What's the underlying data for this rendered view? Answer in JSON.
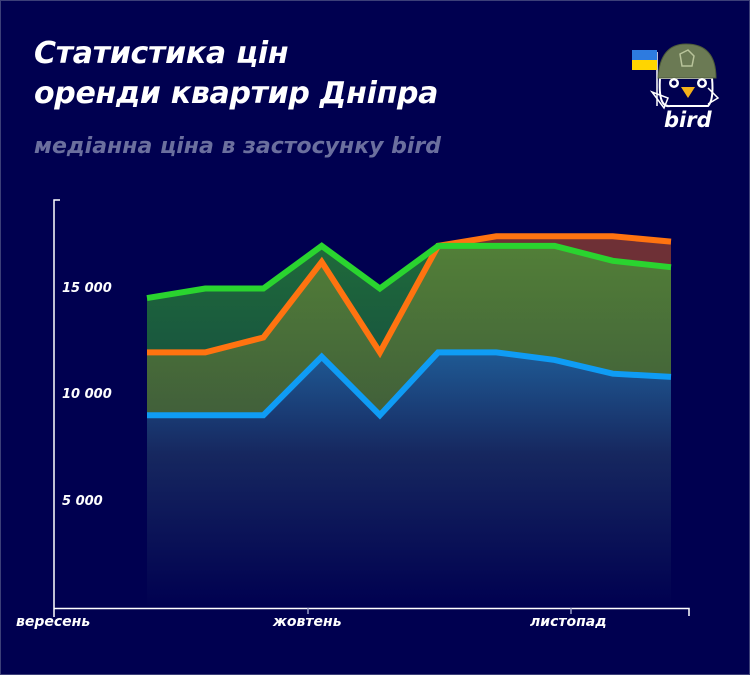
{
  "header": {
    "title_line1": "Статистика цін",
    "title_line2": "оренди квартир Дніпра",
    "subtitle": "медіанна ціна в застосунку bird"
  },
  "logo": {
    "text": "bird",
    "icon": "bird-mascot-helmet-ukraine-flag-icon"
  },
  "colors": {
    "background": "#000050",
    "green": "#2ad42f",
    "orange": "#ff7310",
    "blue": "#0f9cf5",
    "subtitle": "#6b6f9e"
  },
  "chart_data": {
    "type": "area",
    "title": "Статистика цін оренди квартир Дніпра",
    "subtitle": "медіанна ціна в застосунку bird",
    "xlabel": "",
    "ylabel": "",
    "x_tick_labels": [
      "вересень",
      "жовтень",
      "листопад"
    ],
    "y_tick_labels": [
      "5 000",
      "10 000",
      "15 000"
    ],
    "y_ticks": [
      5000,
      10000,
      15000
    ],
    "ylim": [
      0,
      19000
    ],
    "grid": false,
    "legend": "none",
    "x_index": [
      1,
      2,
      3,
      4,
      5,
      6,
      7,
      8,
      9,
      10
    ],
    "series": [
      {
        "name": "green",
        "color": "#2ad42f",
        "values": [
          14550,
          15000,
          15000,
          17000,
          15000,
          17000,
          17000,
          17000,
          16300,
          16000
        ]
      },
      {
        "name": "orange",
        "color": "#ff7310",
        "values": [
          12000,
          12000,
          12700,
          16250,
          12000,
          17000,
          17450,
          17450,
          17450,
          17200
        ]
      },
      {
        "name": "blue",
        "color": "#0f9cf5",
        "values": [
          9050,
          9050,
          9050,
          11800,
          9050,
          12000,
          12000,
          11650,
          11000,
          10850
        ]
      }
    ]
  }
}
